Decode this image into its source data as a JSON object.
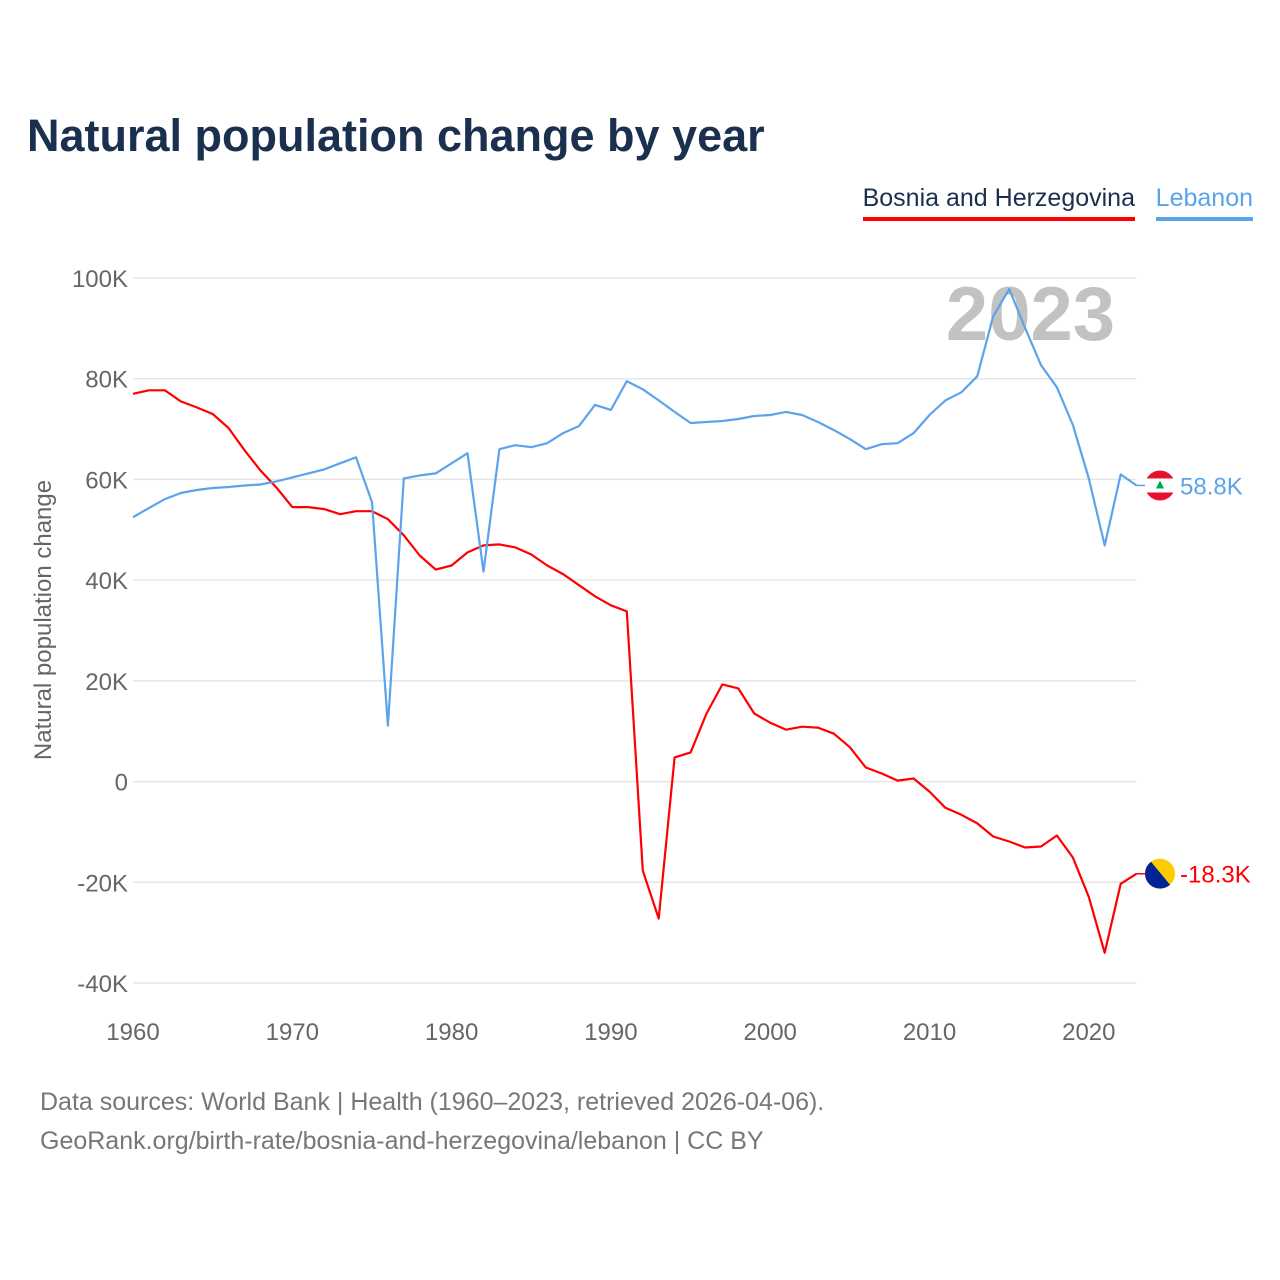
{
  "chart_data": {
    "type": "line",
    "title": "Natural population change by year",
    "xlabel": "",
    "ylabel": "Natural population change",
    "xlim": [
      1960,
      2023
    ],
    "ylim": [
      -40000,
      100000
    ],
    "yticks": [
      100000,
      80000,
      60000,
      40000,
      20000,
      0,
      -20000,
      -40000
    ],
    "ytick_labels": [
      "100K",
      "80K",
      "60K",
      "40K",
      "20K",
      "0",
      "-20K",
      "-40K"
    ],
    "xticks": [
      1960,
      1970,
      1980,
      1990,
      2000,
      2010,
      2020
    ],
    "xtick_labels": [
      "1960",
      "1970",
      "1980",
      "1990",
      "2000",
      "2010",
      "2020"
    ],
    "grid": true,
    "legend_position": "top-right",
    "year_watermark": "2023",
    "x_start": 1960,
    "series": [
      {
        "name": "Bosnia and Herzegovina",
        "color": "#ff0000",
        "end_label": "-18.3K",
        "flag": "bosnia-flag",
        "values": [
          77000,
          77700,
          77700,
          75500,
          74300,
          73000,
          70200,
          65800,
          61800,
          58400,
          54500,
          54500,
          54100,
          53100,
          53700,
          53700,
          52100,
          48900,
          44900,
          42100,
          42900,
          45500,
          46900,
          47100,
          46500,
          45100,
          42900,
          41200,
          39000,
          36800,
          35000,
          33800,
          -17700,
          -27200,
          4800,
          5800,
          13500,
          19300,
          18500,
          13500,
          11700,
          10300,
          10900,
          10700,
          9500,
          6800,
          2800,
          1600,
          200,
          600,
          -2000,
          -5200,
          -6600,
          -8300,
          -10900,
          -11900,
          -13100,
          -12900,
          -10700,
          -15100,
          -22900,
          -34000,
          -20300,
          -18300
        ]
      },
      {
        "name": "Lebanon",
        "color": "#5ba3ea",
        "end_label": "58.8K",
        "flag": "lebanon-flag",
        "values": [
          52500,
          54300,
          56100,
          57300,
          57900,
          58300,
          58500,
          58800,
          59000,
          59600,
          60400,
          61200,
          62000,
          63200,
          64400,
          55500,
          11100,
          60200,
          60800,
          61200,
          63200,
          65200,
          41700,
          66000,
          66800,
          66400,
          67200,
          69200,
          70600,
          74800,
          73800,
          79500,
          77900,
          75700,
          73400,
          71200,
          71400,
          71600,
          72000,
          72600,
          72800,
          73400,
          72800,
          71400,
          69800,
          68000,
          66000,
          67000,
          67200,
          69200,
          72800,
          75700,
          77300,
          80500,
          92400,
          97800,
          90100,
          82700,
          78300,
          70800,
          60200,
          46900,
          61000,
          58800
        ]
      }
    ]
  },
  "footer": {
    "line1": "Data sources: World Bank | Health (1960–2023, retrieved 2026-04-06).",
    "line2": "GeoRank.org/birth-rate/bosnia-and-herzegovina/lebanon | CC BY"
  }
}
